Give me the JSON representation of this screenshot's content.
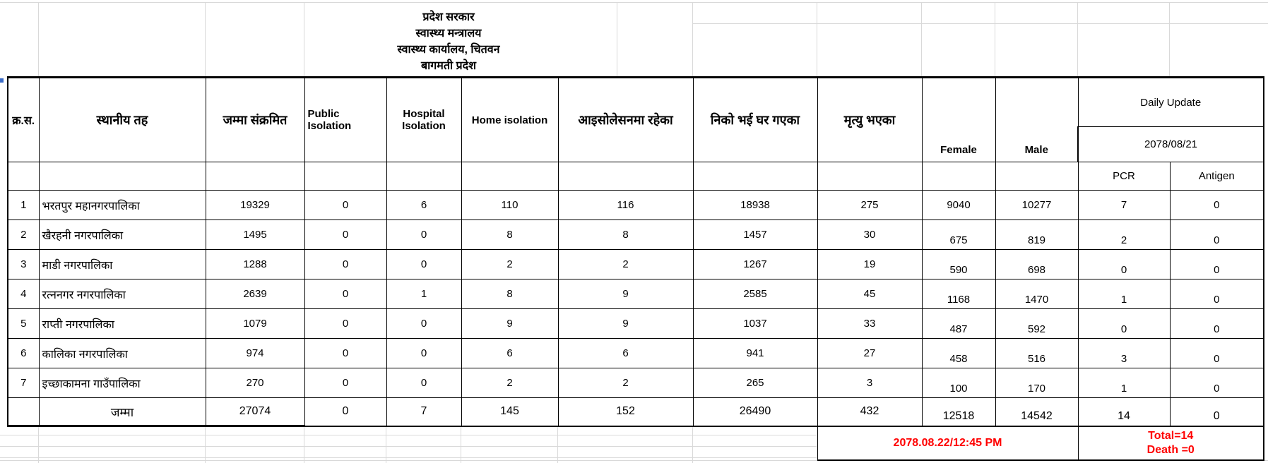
{
  "colors": {
    "accent_red": "#ff0000",
    "table_border": "#000000",
    "gridline": "#d9d9d9"
  },
  "title": {
    "line1": "प्रदेश सरकार",
    "line2": "स्वास्थ्य मन्त्रालय",
    "line3": "स्वास्थ्य कार्यालय, चितवन",
    "line4": "बागमती प्रदेश"
  },
  "table": {
    "headers": {
      "sn": "क्र.स.",
      "local_level": "स्थानीय तह",
      "total_infected": "जम्मा संक्रमित",
      "public_isolation": "Public Isolation",
      "hospital_isolation": "Hospital Isolation",
      "home_isolation": "Home isolation",
      "in_isolation": "आइसोलेसनमा रहेका",
      "recovered": "निको भई घर गएका",
      "deaths": "मृत्यु भएका",
      "female": "Female",
      "male": "Male",
      "daily_update": "Daily Update",
      "daily_update_date": "2078/08/21",
      "pcr": "PCR",
      "antigen": "Antigen"
    },
    "rows": [
      {
        "sn": "1",
        "local_level": "भरतपुर महानगरपालिका",
        "total_infected": "19329",
        "public": "0",
        "hospital": "6",
        "home": "110",
        "in_isolation": "116",
        "recovered": "18938",
        "deaths": "275",
        "female": "9040",
        "male": "10277",
        "pcr": "7",
        "antigen": "0"
      },
      {
        "sn": "2",
        "local_level": "खैरहनी नगरपालिका",
        "total_infected": "1495",
        "public": "0",
        "hospital": "0",
        "home": "8",
        "in_isolation": "8",
        "recovered": "1457",
        "deaths": "30",
        "female": "675",
        "male": "819",
        "pcr": "2",
        "antigen": "0"
      },
      {
        "sn": "3",
        "local_level": "माडी नगरपालिका",
        "total_infected": "1288",
        "public": "0",
        "hospital": "0",
        "home": "2",
        "in_isolation": "2",
        "recovered": "1267",
        "deaths": "19",
        "female": "590",
        "male": "698",
        "pcr": "0",
        "antigen": "0"
      },
      {
        "sn": "4",
        "local_level": "रत्ननगर नगरपालिका",
        "total_infected": "2639",
        "public": "0",
        "hospital": "1",
        "home": "8",
        "in_isolation": "9",
        "recovered": "2585",
        "deaths": "45",
        "female": "1168",
        "male": "1470",
        "pcr": "1",
        "antigen": "0"
      },
      {
        "sn": "5",
        "local_level": "राप्ती नगरपालिका",
        "total_infected": "1079",
        "public": "0",
        "hospital": "0",
        "home": "9",
        "in_isolation": "9",
        "recovered": "1037",
        "deaths": "33",
        "female": "487",
        "male": "592",
        "pcr": "0",
        "antigen": "0"
      },
      {
        "sn": "6",
        "local_level": "कालिका नगरपालिका",
        "total_infected": "974",
        "public": "0",
        "hospital": "0",
        "home": "6",
        "in_isolation": "6",
        "recovered": "941",
        "deaths": "27",
        "female": "458",
        "male": "516",
        "pcr": "3",
        "antigen": "0"
      },
      {
        "sn": "7",
        "local_level": "इच्छाकामना गाउँपालिका",
        "total_infected": "270",
        "public": "0",
        "hospital": "0",
        "home": "2",
        "in_isolation": "2",
        "recovered": "265",
        "deaths": "3",
        "female": "100",
        "male": "170",
        "pcr": "1",
        "antigen": "0"
      }
    ],
    "total_row": {
      "label": "जम्मा",
      "total_infected": "27074",
      "public": "0",
      "hospital": "7",
      "home": "145",
      "in_isolation": "152",
      "recovered": "26490",
      "deaths": "432",
      "female": "12518",
      "male": "14542",
      "pcr": "14",
      "antigen": "0"
    }
  },
  "footer": {
    "timestamp": "2078.08.22/12:45 PM",
    "total_line": "Total=14",
    "death_line": "Death =0"
  }
}
